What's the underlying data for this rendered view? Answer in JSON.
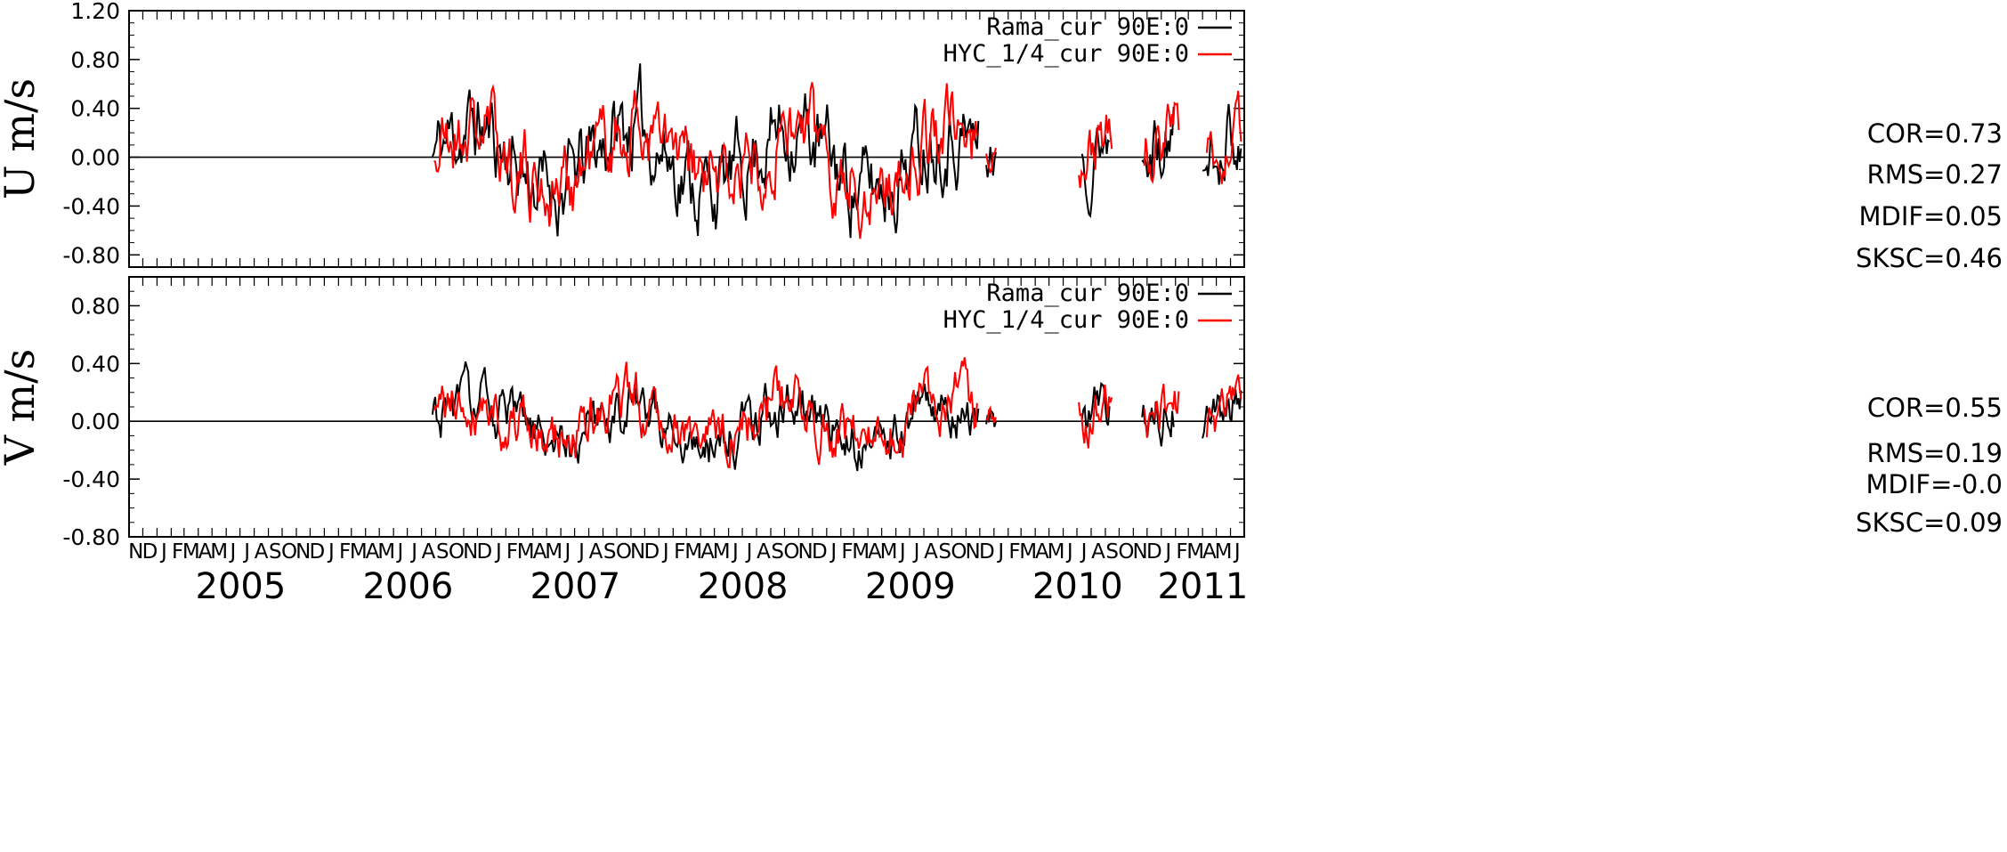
{
  "chart_data": [
    {
      "type": "line",
      "ylabel": "U m/s",
      "ylim": [
        -0.9,
        1.2
      ],
      "yticks": [
        "1.20",
        "0.80",
        "0.40",
        "0.00",
        "-0.40",
        "-0.80"
      ],
      "series": [
        {
          "name": "Rama_cur 90E:0",
          "color": "#000000",
          "segments": [
            {
              "start": "2006-08-25",
              "end": "2009-11-28",
              "seed": 11,
              "amp": 0.42
            },
            {
              "start": "2009-12-15",
              "end": "2010-01-05",
              "seed": 12,
              "amp": 0.25
            },
            {
              "start": "2010-07-12",
              "end": "2010-09-10",
              "seed": 13,
              "amp": 0.35
            },
            {
              "start": "2010-11-20",
              "end": "2011-01-30",
              "seed": 14,
              "amp": 0.4
            },
            {
              "start": "2011-04-01",
              "end": "2011-06-25",
              "seed": 15,
              "amp": 0.35
            }
          ]
        },
        {
          "name": "HYC_1/4_cur 90E:0",
          "color": "#ff0000",
          "segments": [
            {
              "start": "2006-08-28",
              "end": "2009-11-25",
              "seed": 21,
              "amp": 0.4
            },
            {
              "start": "2009-12-15",
              "end": "2010-01-05",
              "seed": 22,
              "amp": 0.2
            },
            {
              "start": "2010-07-05",
              "end": "2010-09-15",
              "seed": 23,
              "amp": 0.3
            },
            {
              "start": "2010-11-25",
              "end": "2011-02-10",
              "seed": 24,
              "amp": 0.35
            },
            {
              "start": "2011-04-10",
              "end": "2011-06-25",
              "seed": 25,
              "amp": 0.3
            }
          ]
        }
      ],
      "stats": [
        "COR=0.73",
        "RMS=0.27",
        "MDIF=0.05",
        "SKSC=0.46"
      ]
    },
    {
      "type": "line",
      "ylabel": "V m/s",
      "ylim": [
        -0.8,
        1.0
      ],
      "yticks": [
        "0.80",
        "0.40",
        "0.00",
        "-0.40",
        "-0.80"
      ],
      "series": [
        {
          "name": "Rama_cur 90E:0",
          "color": "#000000",
          "segments": [
            {
              "start": "2006-08-25",
              "end": "2009-11-28",
              "seed": 31,
              "amp": 0.22
            },
            {
              "start": "2009-12-15",
              "end": "2010-01-05",
              "seed": 32,
              "amp": 0.15
            },
            {
              "start": "2010-07-12",
              "end": "2010-09-10",
              "seed": 33,
              "amp": 0.22
            },
            {
              "start": "2010-11-20",
              "end": "2011-01-30",
              "seed": 34,
              "amp": 0.22
            },
            {
              "start": "2011-04-01",
              "end": "2011-06-25",
              "seed": 35,
              "amp": 0.2
            }
          ]
        },
        {
          "name": "HYC_1/4_cur 90E:0",
          "color": "#ff0000",
          "segments": [
            {
              "start": "2006-08-28",
              "end": "2009-11-25",
              "seed": 41,
              "amp": 0.24
            },
            {
              "start": "2009-12-15",
              "end": "2010-01-05",
              "seed": 42,
              "amp": 0.15
            },
            {
              "start": "2010-07-05",
              "end": "2010-09-15",
              "seed": 43,
              "amp": 0.22
            },
            {
              "start": "2010-11-25",
              "end": "2011-02-10",
              "seed": 44,
              "amp": 0.22
            },
            {
              "start": "2011-04-10",
              "end": "2011-06-25",
              "seed": 45,
              "amp": 0.2
            }
          ]
        }
      ],
      "stats": [
        "COR=0.55",
        "RMS=0.19",
        "MDIF=-0.0",
        "SKSC=0.09"
      ]
    }
  ],
  "x_axis": {
    "start": "2004-11-01",
    "end": "2011-07-01",
    "month_letters": [
      "N",
      "D",
      "J",
      "F",
      "M",
      "A",
      "M",
      "J",
      "J",
      "A",
      "S",
      "O",
      "N",
      "D",
      "J",
      "F",
      "M",
      "A",
      "M",
      "J",
      "J",
      "A",
      "S",
      "O",
      "N",
      "D",
      "J",
      "F",
      "M",
      "A",
      "M",
      "J",
      "J",
      "A",
      "S",
      "O",
      "N",
      "D",
      "J",
      "F",
      "M",
      "A",
      "M",
      "J",
      "J",
      "A",
      "S",
      "O",
      "N",
      "D",
      "J",
      "F",
      "M",
      "A",
      "M",
      "J",
      "J",
      "A",
      "S",
      "O",
      "N",
      "D",
      "J",
      "F",
      "M",
      "A",
      "M",
      "J",
      "J",
      "A",
      "S",
      "O",
      "N",
      "D",
      "J",
      "F",
      "M",
      "A",
      "M",
      "J"
    ],
    "years": [
      "2005",
      "2006",
      "2007",
      "2008",
      "2009",
      "2010",
      "2011"
    ]
  }
}
